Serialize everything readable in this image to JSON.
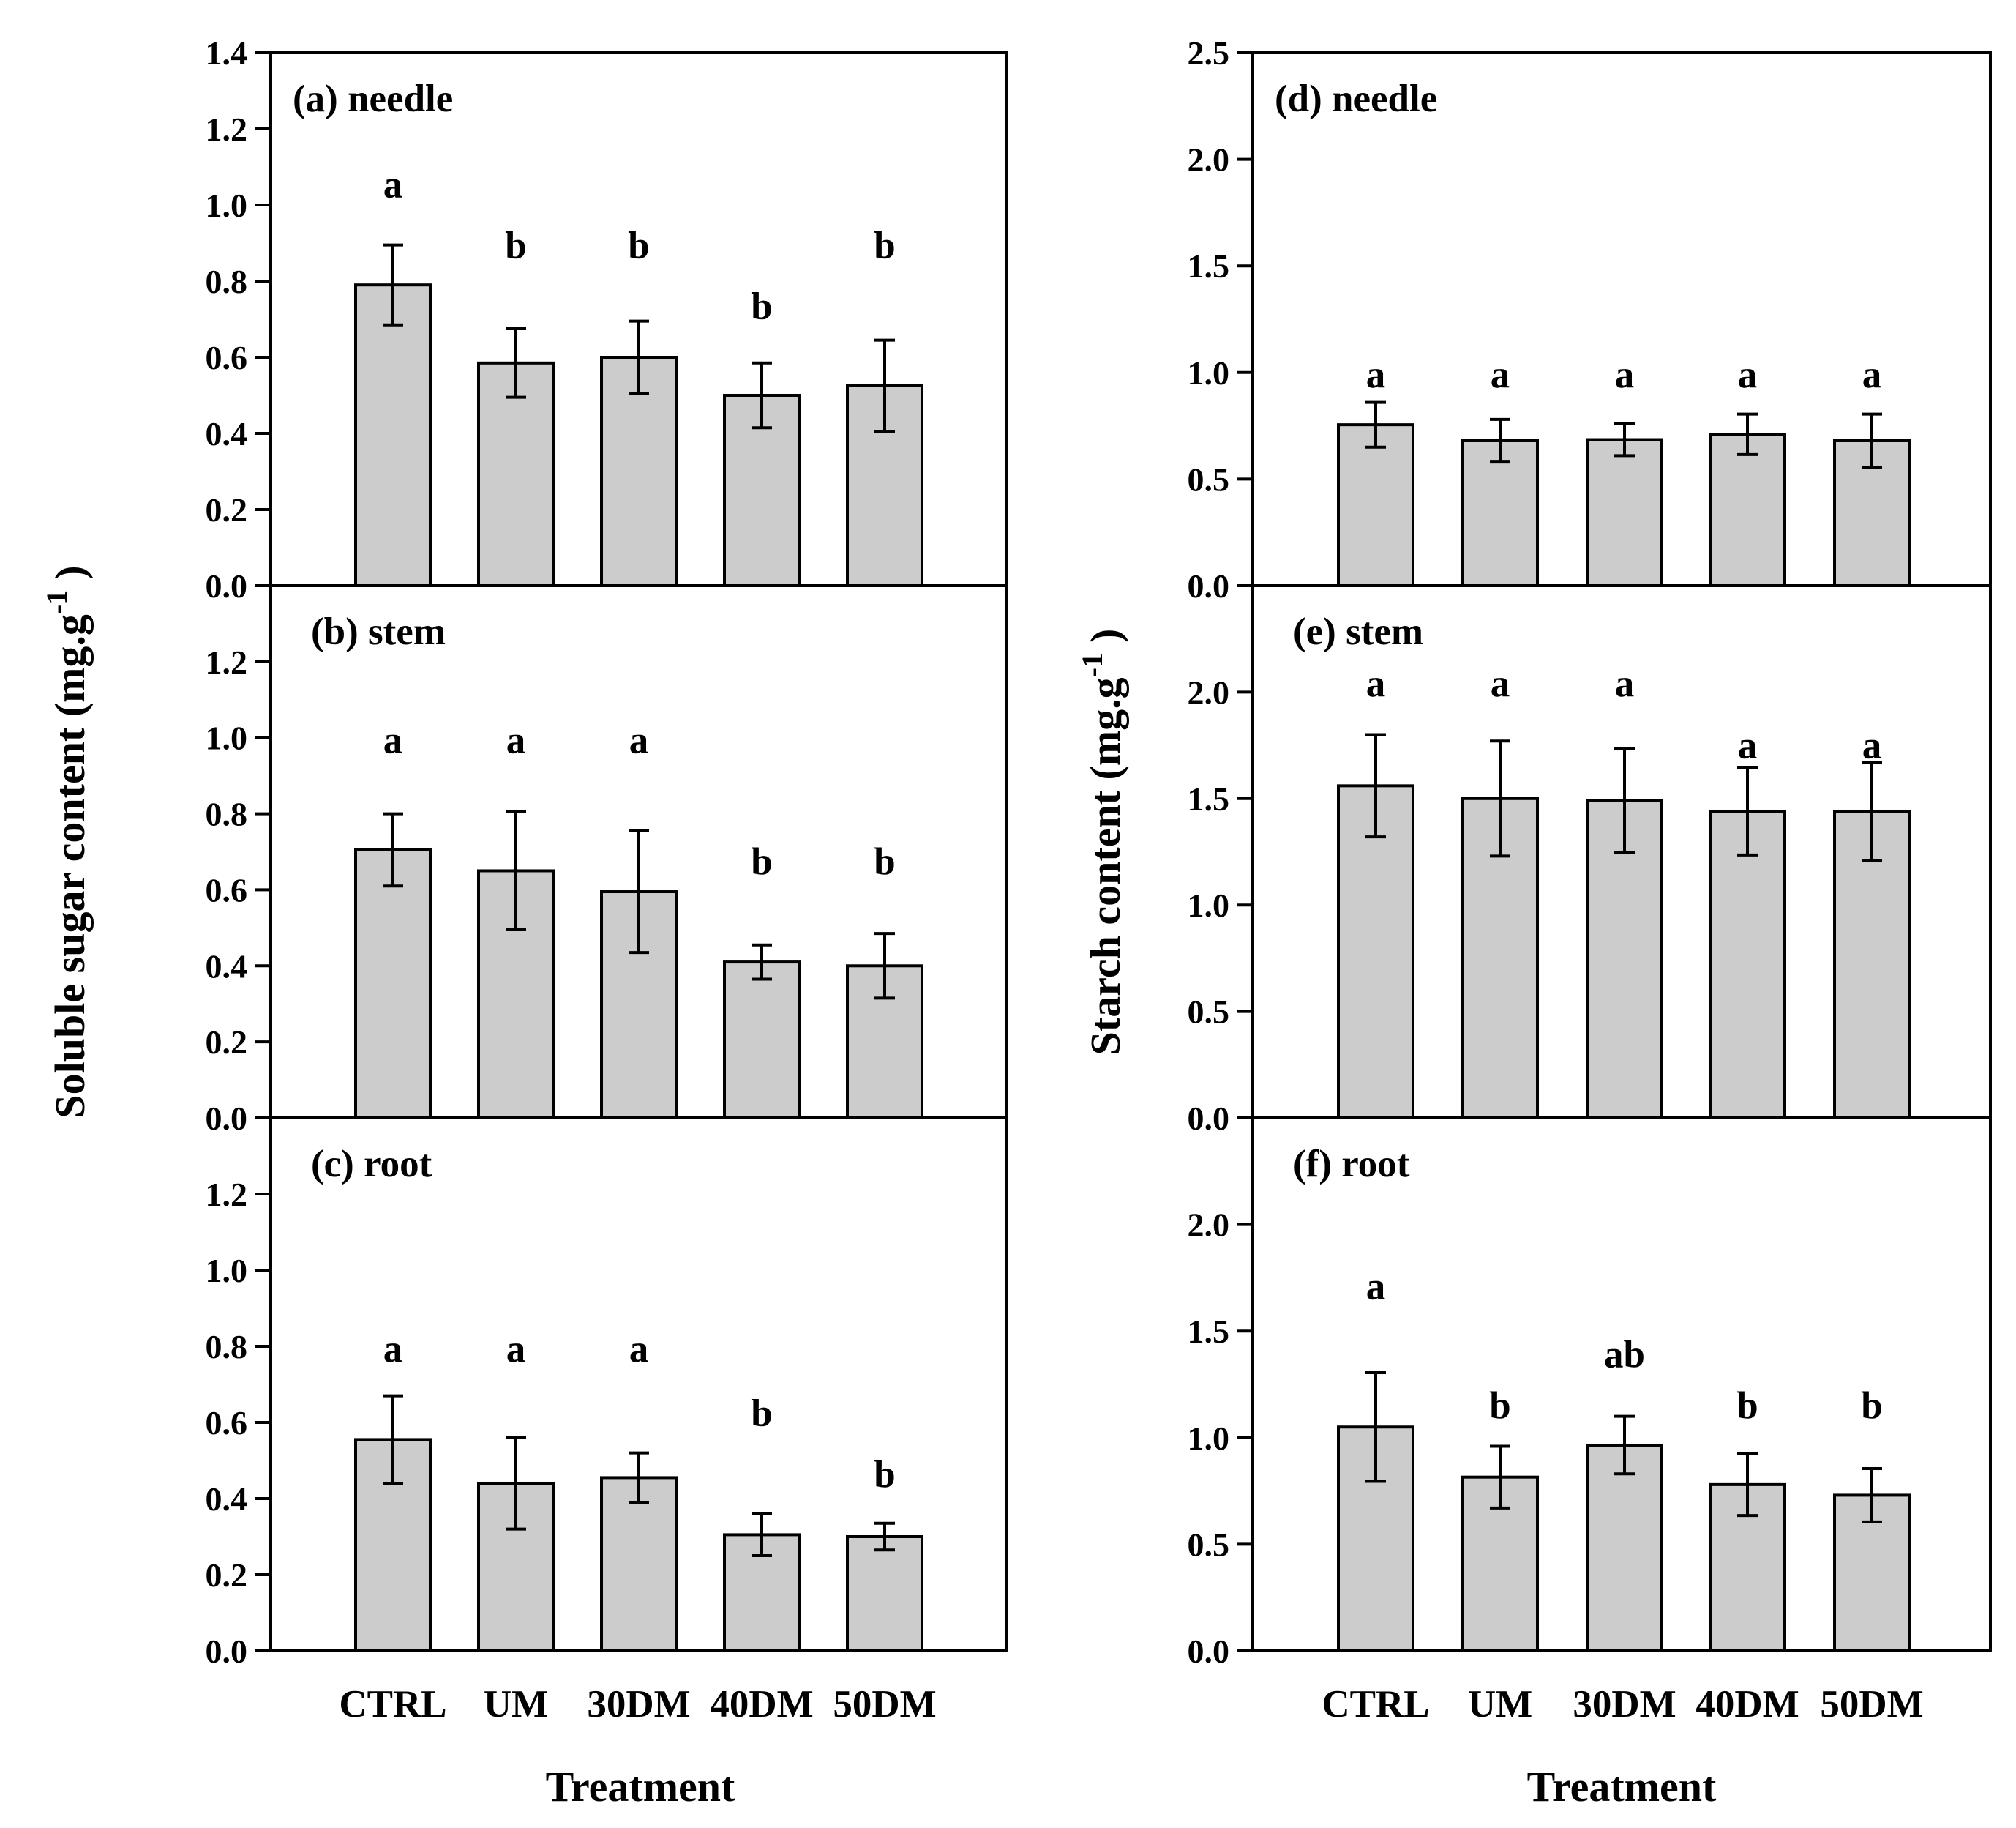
{
  "chart_data": [
    {
      "type": "bar",
      "column": "left",
      "ylabel": "Soluble sugar content (mg.g",
      "ylabel_sup": "-1",
      "ylabel_close": ")",
      "xlabel": "Treatment",
      "categories": [
        "CTRL",
        "UM",
        "30DM",
        "40DM",
        "50DM"
      ],
      "panels": [
        {
          "id": "a",
          "label": "(a) needle",
          "ylim": [
            0,
            1.4
          ],
          "ticks": [
            "0.0",
            "0.2",
            "0.4",
            "0.6",
            "0.8",
            "1.0",
            "1.2",
            "1.4"
          ],
          "values": [
            0.79,
            0.585,
            0.6,
            0.5,
            0.525
          ],
          "errors": [
            0.105,
            0.09,
            0.095,
            0.085,
            0.12
          ],
          "letters": [
            "a",
            "b",
            "b",
            "b",
            "b"
          ],
          "letter_levels": [
            1.02,
            0.86,
            0.86,
            0.7,
            0.86
          ]
        },
        {
          "id": "b",
          "label": "(b) stem",
          "ylim": [
            0,
            1.4
          ],
          "ticks": [
            "0.0",
            "0.2",
            "0.4",
            "0.6",
            "0.8",
            "1.0",
            "1.2"
          ],
          "values": [
            0.705,
            0.65,
            0.595,
            0.41,
            0.4
          ],
          "errors": [
            0.095,
            0.155,
            0.16,
            0.045,
            0.085
          ],
          "letters": [
            "a",
            "a",
            "a",
            "b",
            "b"
          ],
          "letter_levels": [
            0.96,
            0.96,
            0.96,
            0.64,
            0.64
          ]
        },
        {
          "id": "c",
          "label": "(c) root",
          "ylim": [
            0,
            1.4
          ],
          "ticks": [
            "0.0",
            "0.2",
            "0.4",
            "0.6",
            "0.8",
            "1.0",
            "1.2"
          ],
          "values": [
            0.555,
            0.44,
            0.455,
            0.305,
            0.3
          ],
          "errors": [
            0.115,
            0.12,
            0.065,
            0.055,
            0.035
          ],
          "letters": [
            "a",
            "a",
            "a",
            "b",
            "b"
          ],
          "letter_levels": [
            0.76,
            0.76,
            0.76,
            0.59,
            0.43
          ]
        }
      ]
    },
    {
      "type": "bar",
      "column": "right",
      "ylabel": "Starch content (mg.g",
      "ylabel_sup": "-1",
      "ylabel_close": ")",
      "xlabel": "Treatment",
      "categories": [
        "CTRL",
        "UM",
        "30DM",
        "40DM",
        "50DM"
      ],
      "panels": [
        {
          "id": "d",
          "label": "(d) needle",
          "ylim": [
            0,
            2.5
          ],
          "ticks": [
            "0.0",
            "0.5",
            "1.0",
            "1.5",
            "2.0",
            "2.5"
          ],
          "values": [
            0.755,
            0.68,
            0.685,
            0.71,
            0.68
          ],
          "errors": [
            0.105,
            0.1,
            0.075,
            0.095,
            0.125
          ],
          "letters": [
            "a",
            "a",
            "a",
            "a",
            "a"
          ],
          "letter_levels": [
            0.93,
            0.93,
            0.93,
            0.93,
            0.93
          ]
        },
        {
          "id": "e",
          "label": "(e) stem",
          "ylim": [
            0,
            2.5
          ],
          "ticks": [
            "0.0",
            "0.5",
            "1.0",
            "1.5",
            "2.0"
          ],
          "values": [
            1.56,
            1.5,
            1.49,
            1.44,
            1.44
          ],
          "errors": [
            0.24,
            0.27,
            0.245,
            0.205,
            0.23
          ],
          "letters": [
            "a",
            "a",
            "a",
            "a",
            "a"
          ],
          "letter_levels": [
            1.98,
            1.98,
            1.98,
            1.69,
            1.69
          ]
        },
        {
          "id": "f",
          "label": "(f) root",
          "ylim": [
            0,
            2.5
          ],
          "ticks": [
            "0.0",
            "0.5",
            "1.0",
            "1.5",
            "2.0"
          ],
          "values": [
            1.05,
            0.815,
            0.965,
            0.78,
            0.73
          ],
          "errors": [
            0.255,
            0.145,
            0.135,
            0.145,
            0.125
          ],
          "letters": [
            "a",
            "b",
            "ab",
            "b",
            "b"
          ],
          "letter_levels": [
            1.65,
            1.09,
            1.33,
            1.09,
            1.09
          ]
        }
      ]
    }
  ]
}
